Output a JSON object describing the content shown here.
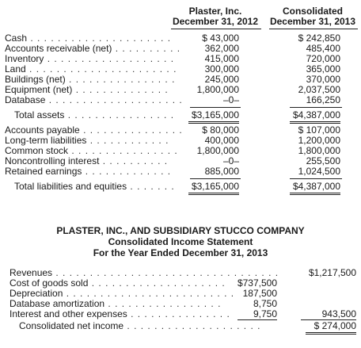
{
  "balance_sheet": {
    "columns": [
      {
        "line1": "Plaster, Inc.",
        "line2": "December 31, 2012"
      },
      {
        "line1": "Consolidated",
        "line2": "December 31, 2013"
      }
    ],
    "rows": [
      {
        "label": "Cash",
        "v1": "$   43,000",
        "v2": "$ 242,850"
      },
      {
        "label": "Accounts receivable (net)",
        "v1": "362,000",
        "v2": "485,400"
      },
      {
        "label": "Inventory",
        "v1": "415,000",
        "v2": "720,000"
      },
      {
        "label": "Land",
        "v1": "300,000",
        "v2": "365,000"
      },
      {
        "label": "Buildings (net)",
        "v1": "245,000",
        "v2": "370,000"
      },
      {
        "label": "Equipment (net)",
        "v1": "1,800,000",
        "v2": "2,037,500"
      },
      {
        "label": "Database",
        "v1": "–0–",
        "v2": "166,250"
      },
      {
        "label": "Total assets",
        "v1": "$3,165,000",
        "v2": "$4,387,000"
      },
      {
        "label": "Accounts payable",
        "v1": "$   80,000",
        "v2": "$ 107,000"
      },
      {
        "label": "Long-term liabilities",
        "v1": "400,000",
        "v2": "1,200,000"
      },
      {
        "label": "Common stock",
        "v1": "1,800,000",
        "v2": "1,800,000"
      },
      {
        "label": "Noncontrolling interest",
        "v1": "–0–",
        "v2": "255,500"
      },
      {
        "label": "Retained earnings",
        "v1": "885,000",
        "v2": "1,024,500"
      },
      {
        "label": "Total liabilities and equities",
        "v1": "$3,165,000",
        "v2": "$4,387,000"
      }
    ]
  },
  "income_statement": {
    "title1": "PLASTER, INC., AND SUBSIDIARY STUCCO COMPANY",
    "title2": "Consolidated Income Statement",
    "title3": "For the Year Ended December 31, 2013",
    "rows": [
      {
        "label": "Revenues",
        "v1": "",
        "v2": "$1,217,500"
      },
      {
        "label": "Cost of goods sold",
        "v1": "$737,500",
        "v2": ""
      },
      {
        "label": "Depreciation",
        "v1": "187,500",
        "v2": ""
      },
      {
        "label": "Database amortization",
        "v1": "8,750",
        "v2": ""
      },
      {
        "label": "Interest and other expenses",
        "v1": "9,750",
        "v2": "943,500"
      },
      {
        "label": "Consolidated net income",
        "v1": "",
        "v2": "$  274,000"
      }
    ]
  }
}
